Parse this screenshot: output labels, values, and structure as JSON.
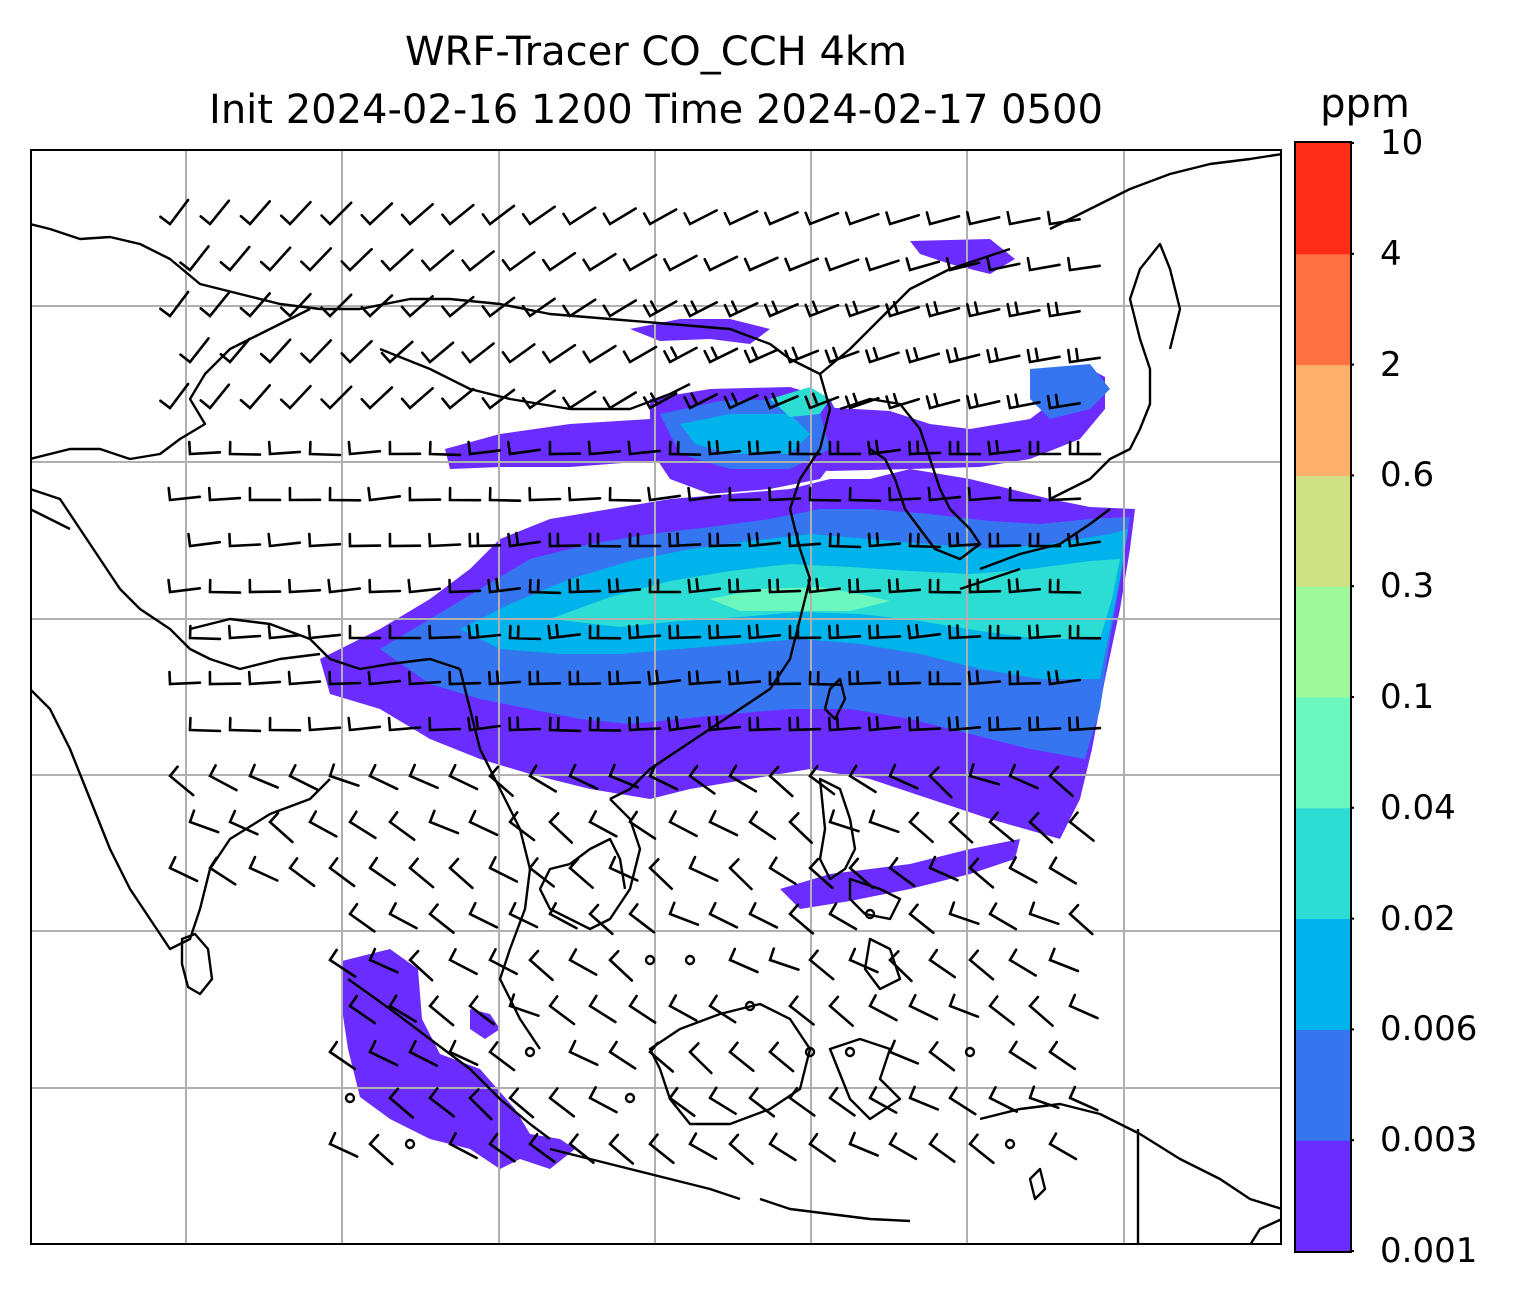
{
  "title": {
    "line1": "WRF-Tracer CO_CCH 4km",
    "line2": "Init 2024-02-16 1200 Time 2024-02-17 0500"
  },
  "colorbar": {
    "unit": "ppm",
    "levels": [
      "0.001",
      "0.003",
      "0.006",
      "0.02",
      "0.04",
      "0.1",
      "0.3",
      "0.6",
      "2",
      "4",
      "10"
    ],
    "colors": [
      "#6a2cff",
      "#3575f0",
      "#00b3ea",
      "#2bddd2",
      "#6cf7bf",
      "#9ef99b",
      "#cfe085",
      "#feb06a",
      "#ff7140",
      "#ff2d17"
    ]
  },
  "map": {
    "gridlines": true,
    "coastline_color": "#000000",
    "gridline_color": "#b0b0b0"
  }
}
